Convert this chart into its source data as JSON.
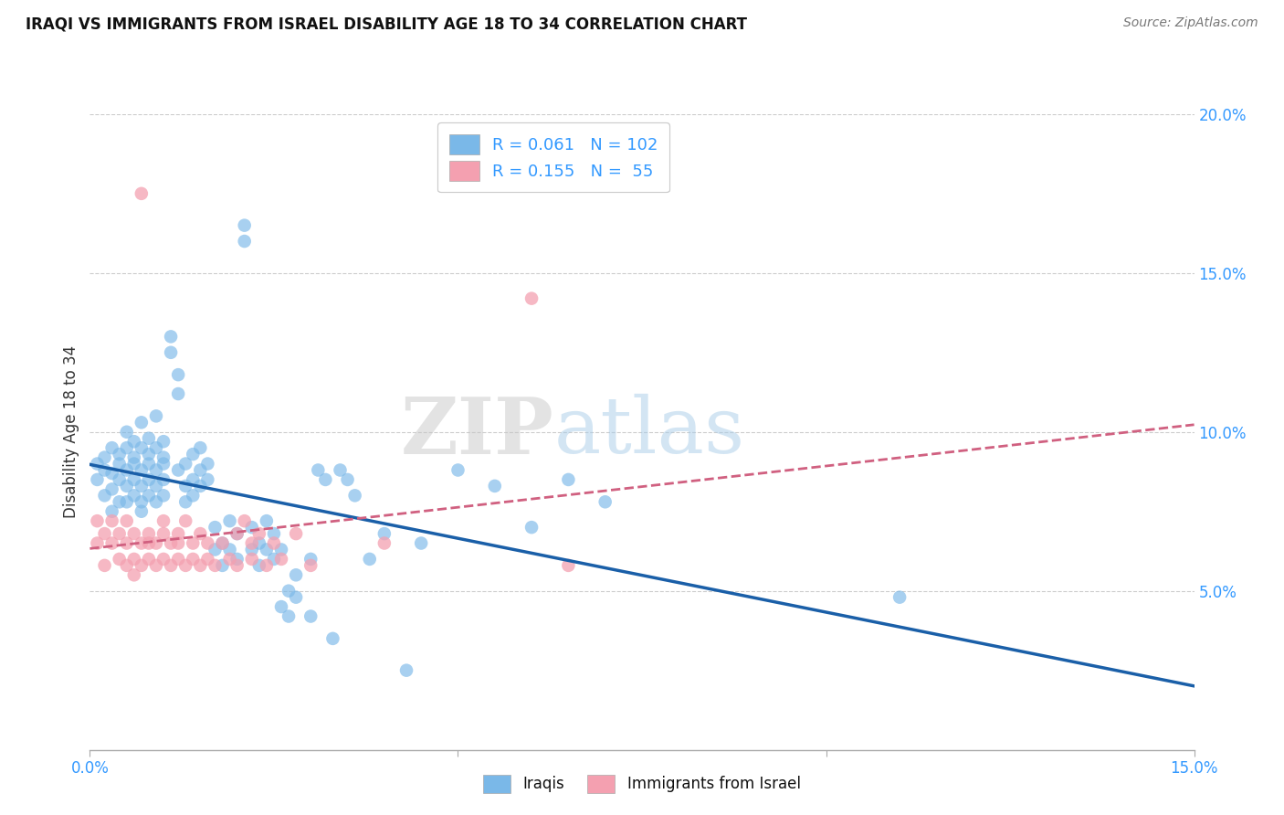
{
  "title": "IRAQI VS IMMIGRANTS FROM ISRAEL DISABILITY AGE 18 TO 34 CORRELATION CHART",
  "source": "Source: ZipAtlas.com",
  "ylabel": "Disability Age 18 to 34",
  "xlim": [
    0.0,
    0.15
  ],
  "ylim": [
    0.0,
    0.2
  ],
  "x_ticks": [
    0.0,
    0.05,
    0.1,
    0.15
  ],
  "x_tick_labels": [
    "0.0%",
    "",
    "",
    "15.0%"
  ],
  "y_ticks_right": [
    0.05,
    0.1,
    0.15,
    0.2
  ],
  "y_tick_labels_right": [
    "5.0%",
    "10.0%",
    "15.0%",
    "20.0%"
  ],
  "legend_entries": [
    {
      "label": "R = 0.061   N = 102",
      "color": "#aec6e8"
    },
    {
      "label": "R = 0.155   N =  55",
      "color": "#f4b8c1"
    }
  ],
  "legend_labels_bottom": [
    "Iraqis",
    "Immigrants from Israel"
  ],
  "iraqis_color": "#7ab8e8",
  "israel_color": "#f4a0b0",
  "iraqis_line_color": "#1a5fa8",
  "israel_line_color": "#d06080",
  "watermark_zip": "ZIP",
  "watermark_atlas": "atlas",
  "iraqis_points": [
    [
      0.001,
      0.09
    ],
    [
      0.001,
      0.085
    ],
    [
      0.002,
      0.088
    ],
    [
      0.002,
      0.092
    ],
    [
      0.002,
      0.08
    ],
    [
      0.003,
      0.087
    ],
    [
      0.003,
      0.082
    ],
    [
      0.003,
      0.095
    ],
    [
      0.003,
      0.075
    ],
    [
      0.004,
      0.09
    ],
    [
      0.004,
      0.085
    ],
    [
      0.004,
      0.093
    ],
    [
      0.004,
      0.078
    ],
    [
      0.005,
      0.088
    ],
    [
      0.005,
      0.083
    ],
    [
      0.005,
      0.095
    ],
    [
      0.005,
      0.1
    ],
    [
      0.005,
      0.078
    ],
    [
      0.006,
      0.09
    ],
    [
      0.006,
      0.085
    ],
    [
      0.006,
      0.092
    ],
    [
      0.006,
      0.08
    ],
    [
      0.006,
      0.097
    ],
    [
      0.007,
      0.088
    ],
    [
      0.007,
      0.083
    ],
    [
      0.007,
      0.095
    ],
    [
      0.007,
      0.078
    ],
    [
      0.007,
      0.103
    ],
    [
      0.007,
      0.075
    ],
    [
      0.008,
      0.09
    ],
    [
      0.008,
      0.085
    ],
    [
      0.008,
      0.093
    ],
    [
      0.008,
      0.08
    ],
    [
      0.008,
      0.098
    ],
    [
      0.009,
      0.088
    ],
    [
      0.009,
      0.083
    ],
    [
      0.009,
      0.095
    ],
    [
      0.009,
      0.078
    ],
    [
      0.009,
      0.105
    ],
    [
      0.01,
      0.09
    ],
    [
      0.01,
      0.085
    ],
    [
      0.01,
      0.092
    ],
    [
      0.01,
      0.08
    ],
    [
      0.01,
      0.097
    ],
    [
      0.011,
      0.13
    ],
    [
      0.011,
      0.125
    ],
    [
      0.012,
      0.112
    ],
    [
      0.012,
      0.118
    ],
    [
      0.012,
      0.088
    ],
    [
      0.013,
      0.083
    ],
    [
      0.013,
      0.09
    ],
    [
      0.013,
      0.078
    ],
    [
      0.014,
      0.085
    ],
    [
      0.014,
      0.093
    ],
    [
      0.014,
      0.08
    ],
    [
      0.015,
      0.088
    ],
    [
      0.015,
      0.083
    ],
    [
      0.015,
      0.095
    ],
    [
      0.016,
      0.09
    ],
    [
      0.016,
      0.085
    ],
    [
      0.017,
      0.063
    ],
    [
      0.017,
      0.07
    ],
    [
      0.018,
      0.065
    ],
    [
      0.018,
      0.058
    ],
    [
      0.019,
      0.072
    ],
    [
      0.019,
      0.063
    ],
    [
      0.02,
      0.06
    ],
    [
      0.02,
      0.068
    ],
    [
      0.021,
      0.165
    ],
    [
      0.021,
      0.16
    ],
    [
      0.022,
      0.063
    ],
    [
      0.022,
      0.07
    ],
    [
      0.023,
      0.065
    ],
    [
      0.023,
      0.058
    ],
    [
      0.024,
      0.072
    ],
    [
      0.024,
      0.063
    ],
    [
      0.025,
      0.06
    ],
    [
      0.025,
      0.068
    ],
    [
      0.026,
      0.063
    ],
    [
      0.026,
      0.045
    ],
    [
      0.027,
      0.05
    ],
    [
      0.027,
      0.042
    ],
    [
      0.028,
      0.048
    ],
    [
      0.028,
      0.055
    ],
    [
      0.03,
      0.06
    ],
    [
      0.03,
      0.042
    ],
    [
      0.031,
      0.088
    ],
    [
      0.032,
      0.085
    ],
    [
      0.033,
      0.035
    ],
    [
      0.034,
      0.088
    ],
    [
      0.035,
      0.085
    ],
    [
      0.036,
      0.08
    ],
    [
      0.038,
      0.06
    ],
    [
      0.04,
      0.068
    ],
    [
      0.043,
      0.025
    ],
    [
      0.045,
      0.065
    ],
    [
      0.05,
      0.088
    ],
    [
      0.055,
      0.083
    ],
    [
      0.06,
      0.07
    ],
    [
      0.065,
      0.085
    ],
    [
      0.07,
      0.078
    ],
    [
      0.11,
      0.048
    ]
  ],
  "israel_points": [
    [
      0.001,
      0.072
    ],
    [
      0.001,
      0.065
    ],
    [
      0.002,
      0.068
    ],
    [
      0.002,
      0.058
    ],
    [
      0.003,
      0.065
    ],
    [
      0.003,
      0.072
    ],
    [
      0.004,
      0.068
    ],
    [
      0.004,
      0.06
    ],
    [
      0.005,
      0.065
    ],
    [
      0.005,
      0.058
    ],
    [
      0.005,
      0.072
    ],
    [
      0.006,
      0.068
    ],
    [
      0.006,
      0.06
    ],
    [
      0.006,
      0.055
    ],
    [
      0.007,
      0.065
    ],
    [
      0.007,
      0.058
    ],
    [
      0.007,
      0.175
    ],
    [
      0.008,
      0.068
    ],
    [
      0.008,
      0.06
    ],
    [
      0.008,
      0.065
    ],
    [
      0.009,
      0.058
    ],
    [
      0.009,
      0.065
    ],
    [
      0.01,
      0.068
    ],
    [
      0.01,
      0.06
    ],
    [
      0.01,
      0.072
    ],
    [
      0.011,
      0.065
    ],
    [
      0.011,
      0.058
    ],
    [
      0.012,
      0.068
    ],
    [
      0.012,
      0.06
    ],
    [
      0.012,
      0.065
    ],
    [
      0.013,
      0.058
    ],
    [
      0.013,
      0.072
    ],
    [
      0.014,
      0.065
    ],
    [
      0.014,
      0.06
    ],
    [
      0.015,
      0.068
    ],
    [
      0.015,
      0.058
    ],
    [
      0.016,
      0.065
    ],
    [
      0.016,
      0.06
    ],
    [
      0.017,
      0.058
    ],
    [
      0.018,
      0.065
    ],
    [
      0.019,
      0.06
    ],
    [
      0.02,
      0.068
    ],
    [
      0.02,
      0.058
    ],
    [
      0.021,
      0.072
    ],
    [
      0.022,
      0.065
    ],
    [
      0.022,
      0.06
    ],
    [
      0.023,
      0.068
    ],
    [
      0.024,
      0.058
    ],
    [
      0.025,
      0.065
    ],
    [
      0.026,
      0.06
    ],
    [
      0.028,
      0.068
    ],
    [
      0.03,
      0.058
    ],
    [
      0.04,
      0.065
    ],
    [
      0.06,
      0.142
    ],
    [
      0.065,
      0.058
    ]
  ]
}
